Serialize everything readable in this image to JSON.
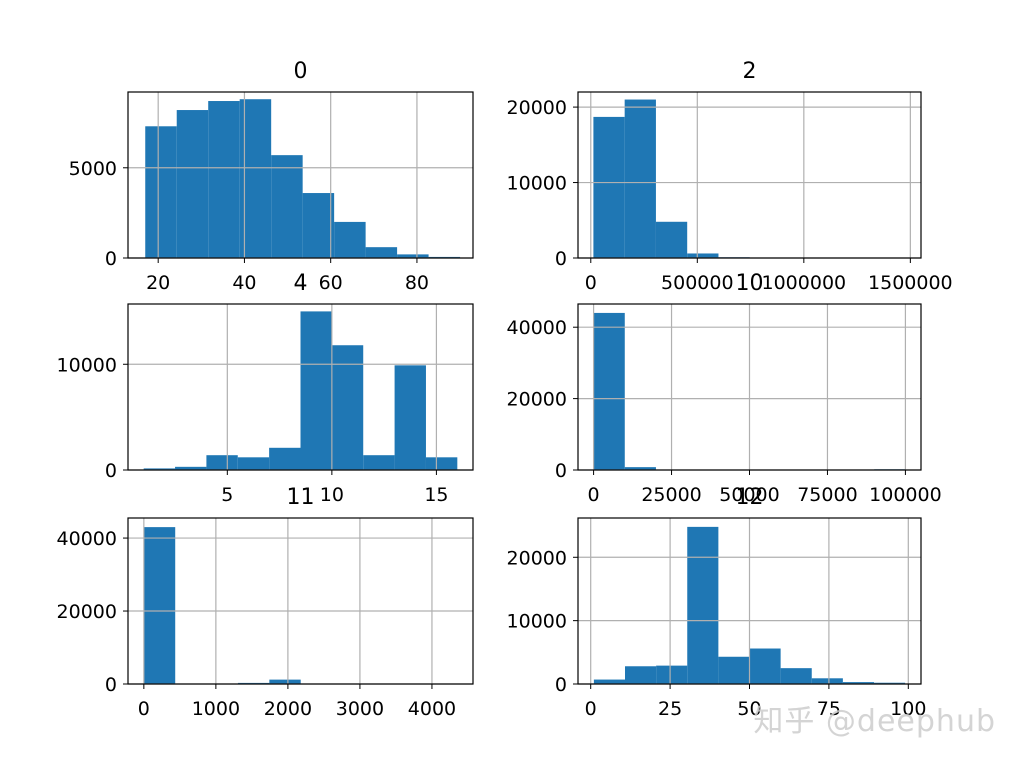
{
  "colors": {
    "bar": "#1f77b4",
    "grid": "#b0b0b0",
    "frame": "#000000"
  },
  "watermark": "知乎 @deephub",
  "chart_data": [
    {
      "type": "bar",
      "title": "0",
      "grid": true,
      "xlim": [
        13,
        93
      ],
      "ylim": [
        0,
        9200
      ],
      "xticks": [
        20,
        40,
        60,
        80
      ],
      "xtick_labels": [
        "20",
        "40",
        "60",
        "80"
      ],
      "yticks": [
        0,
        5000
      ],
      "ytick_labels": [
        "0",
        "5000"
      ],
      "bin_edges": [
        17,
        24.3,
        31.6,
        38.9,
        46.2,
        53.5,
        60.8,
        68.1,
        75.4,
        82.7,
        90
      ],
      "values": [
        7300,
        8200,
        8700,
        8800,
        5700,
        3600,
        2000,
        600,
        200,
        60
      ]
    },
    {
      "type": "bar",
      "title": "2",
      "grid": true,
      "xlim": [
        -60000,
        1550000
      ],
      "ylim": [
        0,
        22000
      ],
      "xticks": [
        0,
        500000,
        1000000,
        1500000
      ],
      "xtick_labels": [
        "0",
        "500000",
        "1000000",
        "1500000"
      ],
      "yticks": [
        0,
        10000,
        20000
      ],
      "ytick_labels": [
        "0",
        "10000",
        "20000"
      ],
      "bin_edges": [
        12285,
        159040,
        305795,
        452550,
        599305,
        746060,
        892815,
        1039570,
        1186325,
        1333080,
        1479835
      ],
      "values": [
        18700,
        21000,
        4800,
        600,
        100,
        30,
        10,
        5,
        2,
        2
      ]
    },
    {
      "type": "bar",
      "title": "4",
      "grid": true,
      "xlim": [
        0.25,
        16.75
      ],
      "ylim": [
        0,
        15700
      ],
      "xticks": [
        5,
        10,
        15
      ],
      "xtick_labels": [
        "5",
        "10",
        "15"
      ],
      "yticks": [
        0,
        10000
      ],
      "ytick_labels": [
        "0",
        "10000"
      ],
      "bin_edges": [
        1,
        2.5,
        4,
        5.5,
        7,
        8.5,
        10,
        11.5,
        13,
        14.5,
        16
      ],
      "values": [
        150,
        300,
        1400,
        1200,
        2100,
        15000,
        11800,
        1400,
        9900,
        1200
      ]
    },
    {
      "type": "bar",
      "title": "10",
      "grid": true,
      "xlim": [
        -5000,
        105000
      ],
      "ylim": [
        0,
        46500
      ],
      "xticks": [
        0,
        25000,
        50000,
        75000,
        100000
      ],
      "xtick_labels": [
        "0",
        "25000",
        "50000",
        "75000",
        "100000"
      ],
      "yticks": [
        0,
        20000,
        40000
      ],
      "ytick_labels": [
        "0",
        "20000",
        "40000"
      ],
      "bin_edges": [
        0,
        9999.9,
        19999.8,
        29999.7,
        39999.6,
        49999.5,
        59999.4,
        69999.3,
        79999.2,
        89999.1,
        99999
      ],
      "values": [
        44000,
        800,
        50,
        20,
        10,
        5,
        5,
        3,
        2,
        200
      ]
    },
    {
      "type": "bar",
      "title": "11",
      "grid": true,
      "xlim": [
        -220,
        4570
      ],
      "ylim": [
        0,
        45500
      ],
      "xticks": [
        0,
        1000,
        2000,
        3000,
        4000
      ],
      "xtick_labels": [
        "0",
        "1000",
        "2000",
        "3000",
        "4000"
      ],
      "yticks": [
        0,
        20000,
        40000
      ],
      "ytick_labels": [
        "0",
        "20000",
        "40000"
      ],
      "bin_edges": [
        0,
        435.6,
        871.2,
        1306.8,
        1742.4,
        2178,
        2613.6,
        3049.2,
        3484.8,
        3920.4,
        4356
      ],
      "values": [
        43000,
        20,
        30,
        300,
        1200,
        100,
        20,
        10,
        5,
        10
      ]
    },
    {
      "type": "bar",
      "title": "12",
      "grid": true,
      "xlim": [
        -4,
        104
      ],
      "ylim": [
        0,
        26200
      ],
      "xticks": [
        0,
        25,
        50,
        75,
        100
      ],
      "xtick_labels": [
        "0",
        "25",
        "50",
        "75",
        "100"
      ],
      "yticks": [
        0,
        10000,
        20000
      ],
      "ytick_labels": [
        "0",
        "10000",
        "20000"
      ],
      "bin_edges": [
        1,
        10.8,
        20.6,
        30.4,
        40.2,
        50,
        59.8,
        69.6,
        79.4,
        89.2,
        99
      ],
      "values": [
        700,
        2800,
        2900,
        24800,
        4300,
        5600,
        2500,
        900,
        300,
        200
      ]
    }
  ]
}
